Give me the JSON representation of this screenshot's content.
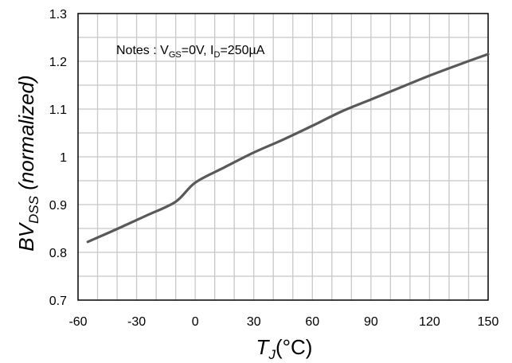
{
  "chart_data": {
    "type": "line",
    "xlabel": {
      "main": "T",
      "sub": "J",
      "unit": "(°C)"
    },
    "ylabel": {
      "main": "BV",
      "sub": "DSS",
      "rest": " (normalized)"
    },
    "annotation": {
      "prefix": "Notes : V",
      "vgs_sub": "GS",
      "vgs_value": "=0V, I",
      "id_sub": "D",
      "id_value": "=250µA"
    },
    "xlim": [
      -60,
      150
    ],
    "ylim": [
      0.7,
      1.3
    ],
    "x_ticks": [
      -60,
      -30,
      0,
      30,
      60,
      90,
      120,
      150
    ],
    "x_tick_labels": [
      "-60",
      "-30",
      "0",
      "30",
      "60",
      "90",
      "120",
      "150"
    ],
    "y_ticks": [
      0.7,
      0.8,
      0.9,
      1.0,
      1.1,
      1.2,
      1.3
    ],
    "y_tick_labels": [
      "0.7",
      "0.8",
      "0.9",
      "1",
      "1.1",
      "1.2",
      "1.3"
    ],
    "grid": true,
    "grid_x_step": 10,
    "grid_y_step": 0.05,
    "series": [
      {
        "color": "#595959",
        "x": [
          -55,
          -40,
          -25,
          -10,
          0,
          15,
          30,
          45,
          60,
          75,
          90,
          105,
          120,
          135,
          150
        ],
        "y": [
          0.822,
          0.849,
          0.877,
          0.906,
          0.946,
          0.978,
          1.009,
          1.036,
          1.065,
          1.095,
          1.12,
          1.145,
          1.17,
          1.193,
          1.215
        ]
      }
    ]
  }
}
